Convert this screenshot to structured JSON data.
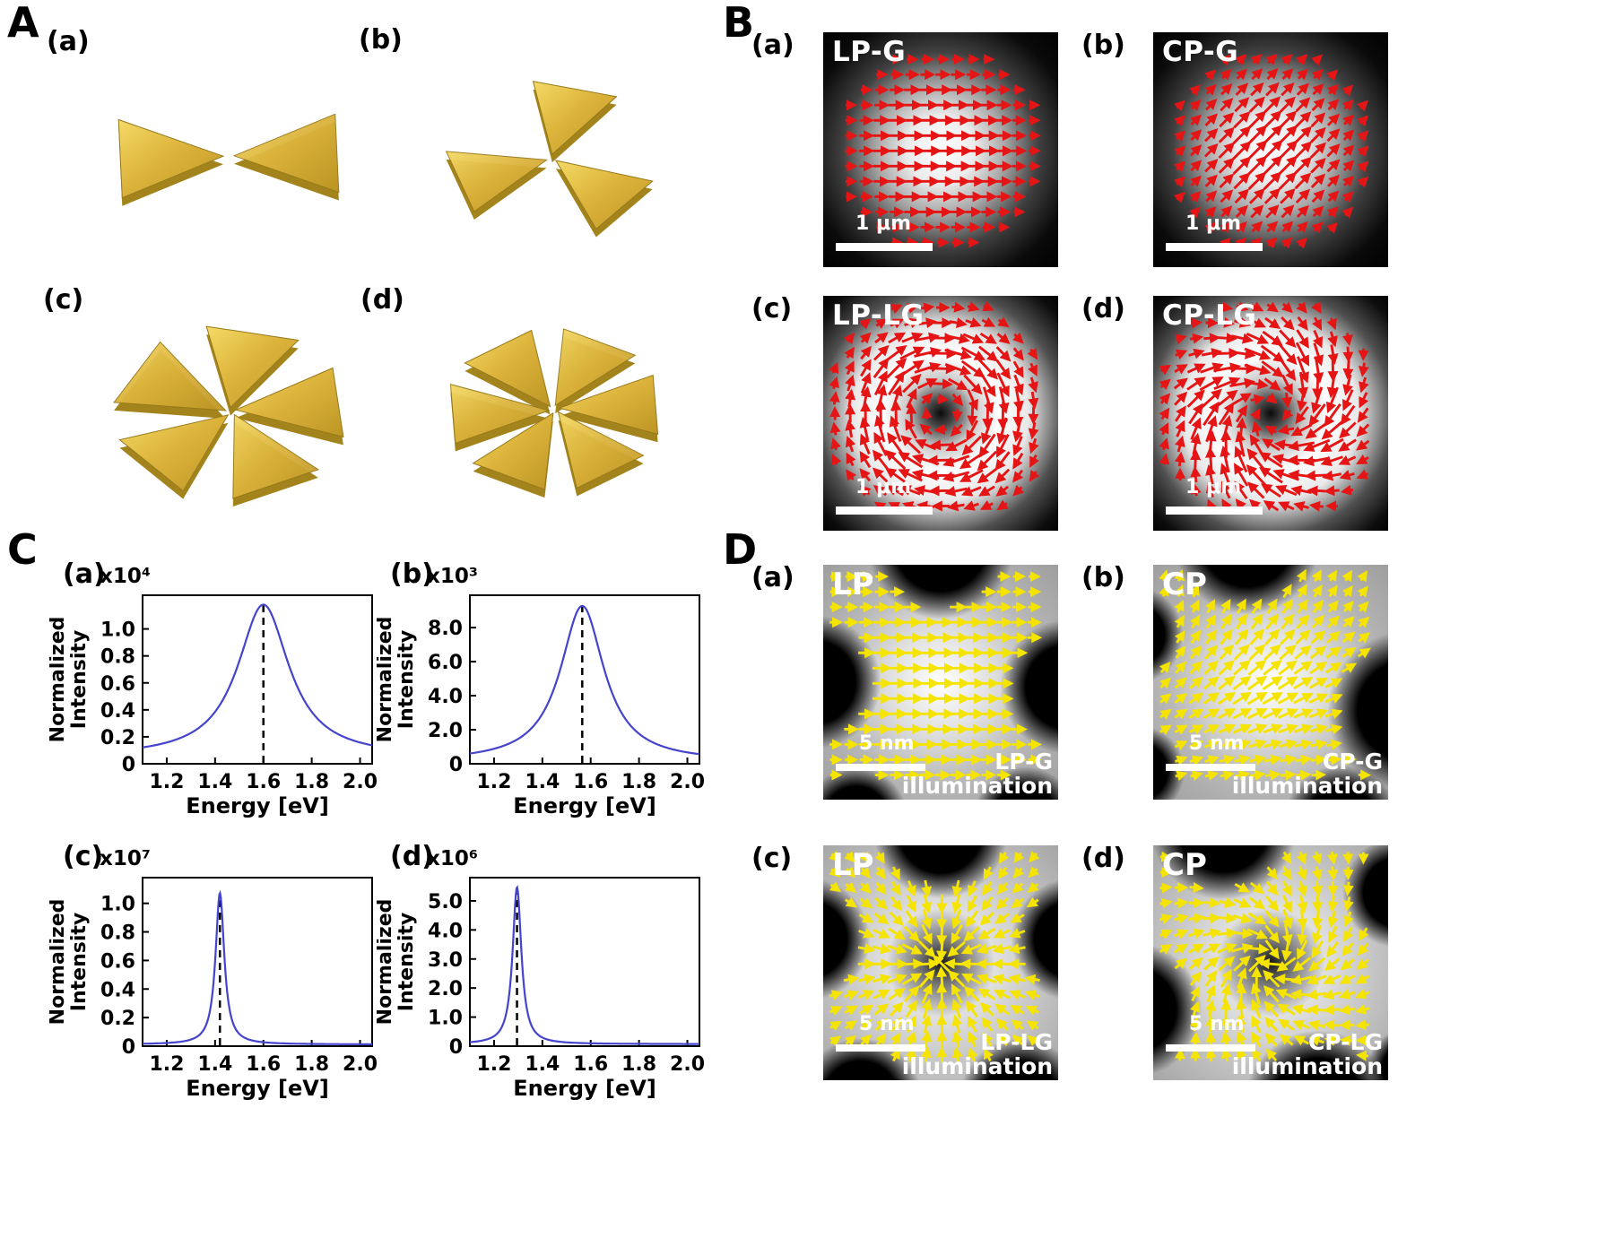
{
  "panels": {
    "A": {
      "label": "A",
      "gold_color": "#d4af37",
      "items": [
        {
          "label": "(a)",
          "triangles": 2
        },
        {
          "label": "(b)",
          "triangles": 3
        },
        {
          "label": "(c)",
          "triangles": 5
        },
        {
          "label": "(d)",
          "triangles": 6
        }
      ]
    },
    "B": {
      "label": "B",
      "arrow_color": "#e51515",
      "items": [
        {
          "label": "(a)",
          "title": "LP-G",
          "scalebar": "1 μm",
          "profile": "gaussian",
          "field": "horizontal"
        },
        {
          "label": "(b)",
          "title": "CP-G",
          "scalebar": "1 μm",
          "profile": "gaussian",
          "field": "diagonal"
        },
        {
          "label": "(c)",
          "title": "LP-LG",
          "scalebar": "1 μm",
          "profile": "donut",
          "field": "azimuthal"
        },
        {
          "label": "(d)",
          "title": "CP-LG",
          "scalebar": "1 μm",
          "profile": "donut",
          "field": "spiral"
        }
      ]
    },
    "C": {
      "label": "C"
    },
    "D": {
      "label": "D",
      "arrow_color": "#f5e400",
      "items": [
        {
          "label": "(a)",
          "corner": "LP",
          "caption_line1": "LP-G",
          "caption_line2": "illumination",
          "scalebar": "5 nm",
          "profile": "bright-gap",
          "field": "horizontal"
        },
        {
          "label": "(b)",
          "corner": "CP",
          "caption_line1": "CP-G",
          "caption_line2": "illumination",
          "scalebar": "5 nm",
          "profile": "bright-gap",
          "field": "curved"
        },
        {
          "label": "(c)",
          "corner": "LP",
          "caption_line1": "LP-LG",
          "caption_line2": "illumination",
          "scalebar": "5 nm",
          "profile": "dark-core-gap",
          "field": "convergent"
        },
        {
          "label": "(d)",
          "corner": "CP",
          "caption_line1": "CP-LG",
          "caption_line2": "illumination",
          "scalebar": "5 nm",
          "profile": "dark-core-gap",
          "field": "spiral-in"
        }
      ]
    }
  },
  "chart_data": [
    {
      "type": "line",
      "label": "(a)",
      "scale_label": "x10⁴",
      "xlabel": "Energy [eV]",
      "ylabel_line1": "Normalized",
      "ylabel_line2": "Intensity",
      "xlim": [
        1.1,
        2.05
      ],
      "ylim": [
        0,
        1.25
      ],
      "xticks": [
        1.2,
        1.4,
        1.6,
        1.8,
        2.0
      ],
      "xtick_labels": [
        "1.2",
        "1.4",
        "1.6",
        "1.8",
        "2.0"
      ],
      "yticks": [
        0,
        0.2,
        0.4,
        0.6,
        0.8,
        1.0
      ],
      "ytick_labels": [
        "0",
        "0.2",
        "0.4",
        "0.6",
        "0.8",
        "1.0"
      ],
      "peak": {
        "center": 1.6,
        "height": 1.13,
        "hwhm": 0.13
      },
      "baseline": 0.05,
      "dashed_line_x": 1.6,
      "line_color": "#4444cc",
      "grid": false
    },
    {
      "type": "line",
      "label": "(b)",
      "scale_label": "x10³",
      "xlabel": "Energy [eV]",
      "ylabel_line1": "Normalized",
      "ylabel_line2": "Intensity",
      "xlim": [
        1.1,
        2.05
      ],
      "ylim": [
        0,
        9.9
      ],
      "xticks": [
        1.2,
        1.4,
        1.6,
        1.8,
        2.0
      ],
      "xtick_labels": [
        "1.2",
        "1.4",
        "1.6",
        "1.8",
        "2.0"
      ],
      "yticks": [
        0,
        2,
        4,
        6,
        8
      ],
      "ytick_labels": [
        "0",
        "2.0",
        "4.0",
        "6.0",
        "8.0"
      ],
      "peak": {
        "center": 1.565,
        "height": 9.15,
        "hwhm": 0.11
      },
      "baseline": 0.12,
      "dashed_line_x": 1.565,
      "line_color": "#4444cc",
      "grid": false
    },
    {
      "type": "line",
      "label": "(c)",
      "scale_label": "x10⁷",
      "xlabel": "Energy [eV]",
      "ylabel_line1": "Normalized",
      "ylabel_line2": "Intensity",
      "xlim": [
        1.1,
        2.05
      ],
      "ylim": [
        0,
        1.18
      ],
      "xticks": [
        1.2,
        1.4,
        1.6,
        1.8,
        2.0
      ],
      "xtick_labels": [
        "1.2",
        "1.4",
        "1.6",
        "1.8",
        "2.0"
      ],
      "yticks": [
        0,
        0.2,
        0.4,
        0.6,
        0.8,
        1.0
      ],
      "ytick_labels": [
        "0",
        "0.2",
        "0.4",
        "0.6",
        "0.8",
        "1.0"
      ],
      "peak": {
        "center": 1.42,
        "height": 1.06,
        "hwhm": 0.022
      },
      "baseline": 0.012,
      "dashed_line_x": 1.42,
      "line_color": "#4444cc",
      "grid": false
    },
    {
      "type": "line",
      "label": "(d)",
      "scale_label": "x10⁶",
      "xlabel": "Energy [eV]",
      "ylabel_line1": "Normalized",
      "ylabel_line2": "Intensity",
      "xlim": [
        1.1,
        2.05
      ],
      "ylim": [
        0,
        5.8
      ],
      "xticks": [
        1.2,
        1.4,
        1.6,
        1.8,
        2.0
      ],
      "xtick_labels": [
        "1.2",
        "1.4",
        "1.6",
        "1.8",
        "2.0"
      ],
      "yticks": [
        0,
        1,
        2,
        3,
        4,
        5
      ],
      "ytick_labels": [
        "0",
        "1.0",
        "2.0",
        "3.0",
        "4.0",
        "5.0"
      ],
      "peak": {
        "center": 1.295,
        "height": 5.4,
        "hwhm": 0.022
      },
      "baseline": 0.07,
      "dashed_line_x": 1.295,
      "line_color": "#4444cc",
      "grid": false
    }
  ]
}
